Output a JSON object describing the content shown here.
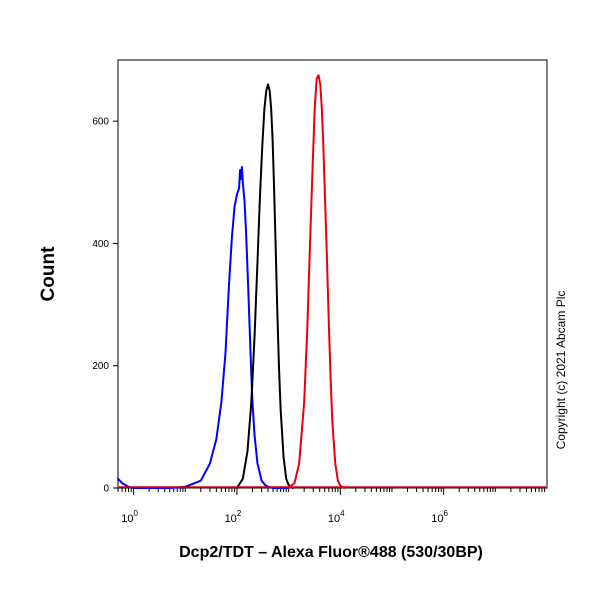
{
  "chart_data": {
    "type": "line",
    "xlabel": "Dcp2/TDT – Alexa Fluor®488 (530/30BP)",
    "ylabel": "Count",
    "x_scale": "log",
    "xlim": [
      0.5,
      100000000
    ],
    "ylim": [
      0,
      700
    ],
    "x_ticks": [
      {
        "value": 1,
        "base": "10",
        "exp": "0"
      },
      {
        "value": 100,
        "base": "10",
        "exp": "2"
      },
      {
        "value": 10000,
        "base": "10",
        "exp": "4"
      },
      {
        "value": 1000000,
        "base": "10",
        "exp": "6"
      }
    ],
    "y_ticks": [
      {
        "value": 0,
        "label": "0"
      },
      {
        "value": 200,
        "label": "200"
      },
      {
        "value": 400,
        "label": "400"
      },
      {
        "value": 600,
        "label": "600"
      }
    ],
    "series": [
      {
        "color": "#0000ff",
        "x": [
          0.5,
          0.6,
          0.8,
          1,
          2,
          5,
          10,
          20,
          30,
          40,
          50,
          60,
          70,
          80,
          90,
          100,
          110,
          115,
          120,
          125,
          130,
          140,
          150,
          160,
          170,
          180,
          190,
          200,
          220,
          250,
          300,
          350,
          400,
          500,
          700,
          1000
        ],
        "y": [
          15,
          8,
          2,
          0,
          0,
          0,
          2,
          12,
          40,
          80,
          140,
          220,
          330,
          410,
          460,
          480,
          490,
          520,
          505,
          525,
          500,
          470,
          420,
          360,
          300,
          240,
          185,
          140,
          85,
          40,
          12,
          5,
          2,
          0,
          0,
          0
        ]
      },
      {
        "color": "#000000",
        "x": [
          100,
          130,
          160,
          190,
          220,
          250,
          280,
          310,
          340,
          370,
          400,
          430,
          460,
          490,
          520,
          560,
          600,
          650,
          700,
          800,
          900,
          1000,
          1200
        ],
        "y": [
          0,
          15,
          60,
          140,
          250,
          370,
          480,
          560,
          620,
          650,
          660,
          650,
          620,
          570,
          500,
          400,
          300,
          200,
          130,
          50,
          15,
          5,
          0
        ]
      },
      {
        "color": "#e8000b",
        "x": [
          1000,
          1300,
          1600,
          2000,
          2300,
          2600,
          2900,
          3200,
          3500,
          3800,
          4100,
          4400,
          4700,
          5000,
          5500,
          6000,
          6500,
          7000,
          8000,
          9000,
          10000,
          12000
        ],
        "y": [
          0,
          8,
          40,
          140,
          260,
          400,
          520,
          620,
          670,
          675,
          660,
          620,
          560,
          490,
          380,
          270,
          180,
          110,
          40,
          12,
          4,
          0
        ]
      }
    ],
    "annotations": [
      "Copyright (c) 2021 Abcam Plc"
    ]
  }
}
